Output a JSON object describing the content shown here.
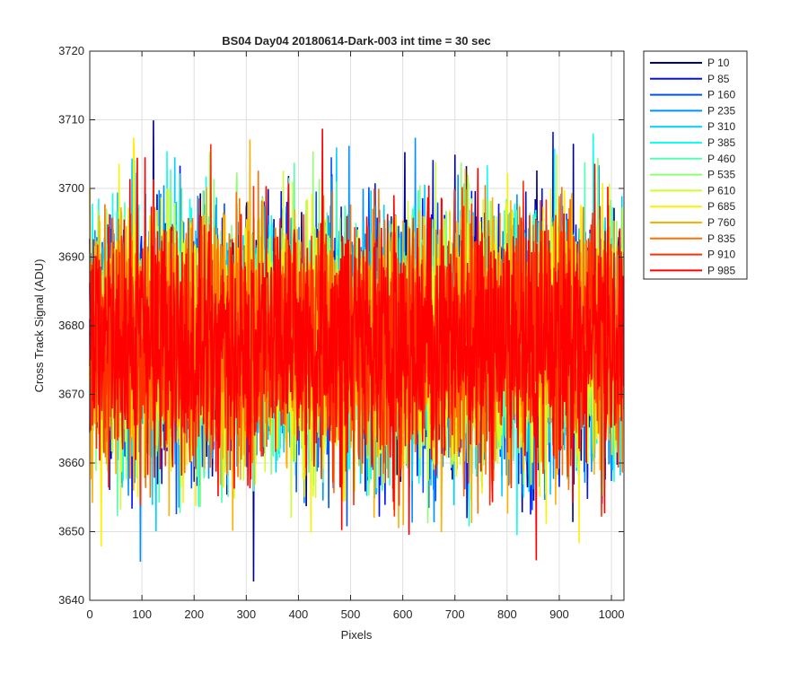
{
  "chart_data": {
    "type": "line",
    "title": "BS04 Day04 20180614-Dark-003 int time = 30 sec",
    "xlabel": "Pixels",
    "ylabel": "Cross Track Signal (ADU)",
    "xlim": [
      0,
      1024
    ],
    "ylim": [
      3640,
      3720
    ],
    "xticks": [
      0,
      100,
      200,
      300,
      400,
      500,
      600,
      700,
      800,
      900,
      1000
    ],
    "yticks": [
      3640,
      3650,
      3660,
      3670,
      3680,
      3690,
      3700,
      3710,
      3720
    ],
    "grid": true,
    "legend_position": "outside-top-right",
    "points_per_series": 1024,
    "noise_summary": {
      "mean": 3678,
      "approx_std": 10,
      "min": 3641,
      "max": 3716
    },
    "series": [
      {
        "name": "P 10",
        "color": "#00008f"
      },
      {
        "name": "P 85",
        "color": "#0010ff"
      },
      {
        "name": "P 160",
        "color": "#0050ff"
      },
      {
        "name": "P 235",
        "color": "#0090ff"
      },
      {
        "name": "P 310",
        "color": "#00cfff"
      },
      {
        "name": "P 385",
        "color": "#10ffef"
      },
      {
        "name": "P 460",
        "color": "#50ffaf"
      },
      {
        "name": "P 535",
        "color": "#8fff70"
      },
      {
        "name": "P 610",
        "color": "#cfff30"
      },
      {
        "name": "P 685",
        "color": "#ffef00"
      },
      {
        "name": "P 760",
        "color": "#ffaf00"
      },
      {
        "name": "P 835",
        "color": "#ff7000"
      },
      {
        "name": "P 910",
        "color": "#ff3000"
      },
      {
        "name": "P 985",
        "color": "#ff0000"
      }
    ]
  }
}
